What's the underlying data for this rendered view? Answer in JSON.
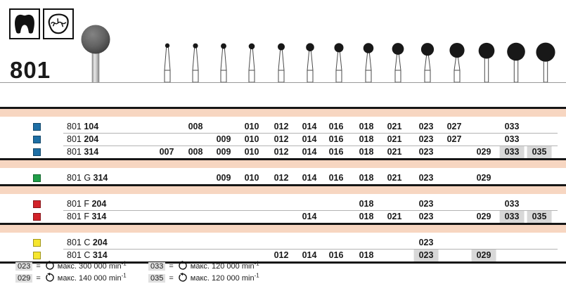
{
  "header": {
    "model": "801",
    "pictograms": [
      {
        "name": "crown-icon",
        "meaning": "crown preparation"
      },
      {
        "name": "occlusal-surface-icon",
        "meaning": "occlusal surface"
      }
    ]
  },
  "figure": {
    "bur_sizes": [
      "007",
      "008",
      "009",
      "010",
      "012",
      "014",
      "016",
      "018",
      "021",
      "023",
      "027",
      "029",
      "033",
      "035"
    ]
  },
  "table": {
    "size_columns": [
      "007",
      "008",
      "009",
      "010",
      "012",
      "014",
      "016",
      "018",
      "021",
      "023",
      "027",
      "029",
      "033",
      "035"
    ],
    "groups": [
      {
        "rows": [
          {
            "color": "blue",
            "prefix": "801",
            "code": "104",
            "sizes": [
              "008",
              "010",
              "012",
              "014",
              "016",
              "018",
              "021",
              "023",
              "027",
              "033"
            ],
            "highlighted": []
          },
          {
            "color": "blue",
            "prefix": "801",
            "code": "204",
            "sizes": [
              "009",
              "010",
              "012",
              "014",
              "016",
              "018",
              "021",
              "023",
              "027",
              "033"
            ],
            "highlighted": []
          },
          {
            "color": "blue",
            "prefix": "801",
            "code": "314",
            "sizes": [
              "007",
              "008",
              "009",
              "010",
              "012",
              "014",
              "016",
              "018",
              "021",
              "023",
              "029",
              "033",
              "035"
            ],
            "highlighted": [
              "033",
              "035"
            ]
          }
        ]
      },
      {
        "rows": [
          {
            "color": "green",
            "prefix": "801 G",
            "code": "314",
            "sizes": [
              "009",
              "010",
              "012",
              "014",
              "016",
              "018",
              "021",
              "023",
              "029"
            ],
            "highlighted": []
          }
        ]
      },
      {
        "rows": [
          {
            "color": "red",
            "prefix": "801 F",
            "code": "204",
            "sizes": [
              "018",
              "023",
              "033"
            ],
            "highlighted": []
          },
          {
            "color": "red",
            "prefix": "801 F",
            "code": "314",
            "sizes": [
              "014",
              "018",
              "021",
              "023",
              "029",
              "033",
              "035"
            ],
            "highlighted": [
              "033",
              "035"
            ]
          }
        ]
      },
      {
        "rows": [
          {
            "color": "yellow",
            "prefix": "801 C",
            "code": "204",
            "sizes": [
              "023"
            ],
            "highlighted": []
          },
          {
            "color": "yellow",
            "prefix": "801 C",
            "code": "314",
            "sizes": [
              "012",
              "014",
              "016",
              "018",
              "023",
              "029"
            ],
            "highlighted": [
              "023",
              "029"
            ]
          }
        ]
      }
    ]
  },
  "footnotes": [
    {
      "label": "023",
      "value": "макс. 300 000",
      "unit": "min",
      "exp": "-1"
    },
    {
      "label": "029",
      "value": "макс. 140 000",
      "unit": "min",
      "exp": "-1"
    },
    {
      "label": "033",
      "value": "макс. 120 000",
      "unit": "min",
      "exp": "-1"
    },
    {
      "label": "035",
      "value": "макс. 120 000",
      "unit": "min",
      "exp": "-1"
    }
  ],
  "colors": {
    "blue": "#1e6fa5",
    "green": "#1f9e48",
    "red": "#d2232a",
    "yellow": "#f6e62e",
    "band": "#f7d6c1",
    "highlight": "#d8d8d8",
    "line": "#161616"
  }
}
